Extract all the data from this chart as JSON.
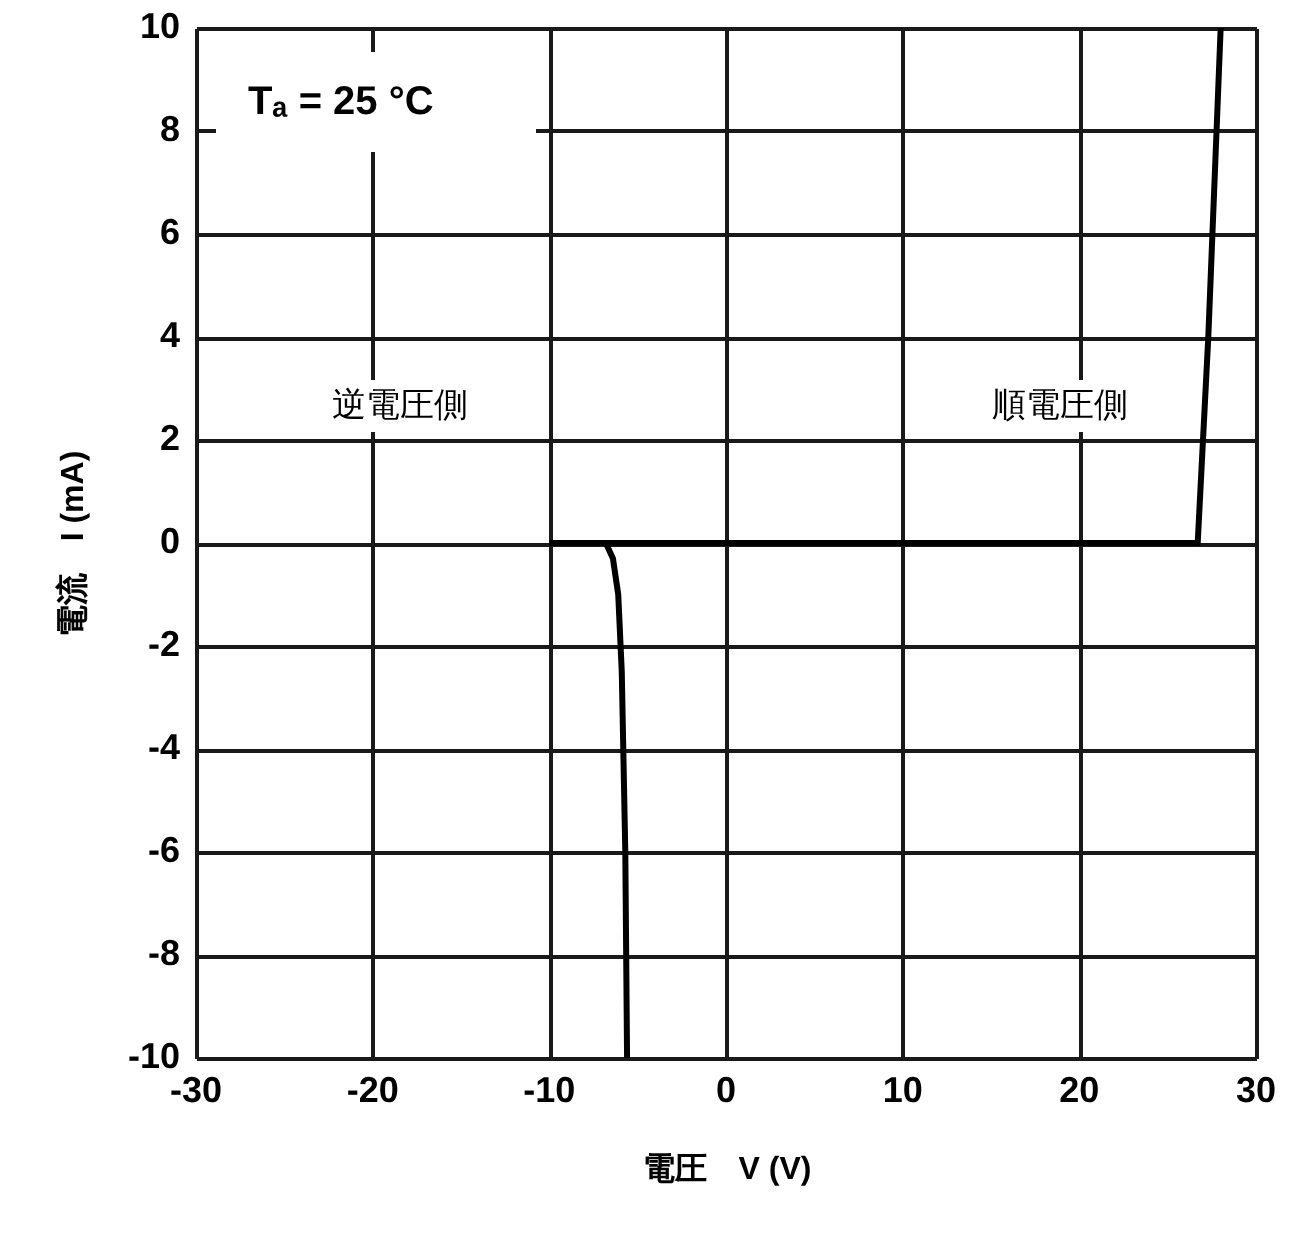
{
  "chart_data": {
    "type": "line",
    "xlabel": "電圧　V (V)",
    "ylabel": "電流　I (mA)",
    "xlim": [
      -30,
      30
    ],
    "ylim": [
      -10,
      10
    ],
    "xticks": [
      -30,
      -20,
      -10,
      0,
      10,
      20,
      30
    ],
    "yticks": [
      -10,
      -8,
      -6,
      -4,
      -2,
      0,
      2,
      4,
      6,
      8,
      10
    ],
    "grid": true,
    "marker": "none",
    "line_style": "solid",
    "series": [
      {
        "color": "#000000",
        "x": [
          -10,
          -6.8,
          -6.4,
          -6.1,
          -5.9,
          -5.7,
          -5.6
        ],
        "values": [
          0,
          0,
          -0.3,
          -1,
          -2.5,
          -6,
          -10
        ]
      },
      {
        "color": "#000000",
        "x": [
          -6.8,
          26.7,
          27.3,
          28.0
        ],
        "values": [
          0,
          0,
          4,
          10
        ]
      }
    ],
    "annotations": [
      "Tₐ = 25 °C",
      "逆電圧側",
      "順電圧側"
    ]
  }
}
